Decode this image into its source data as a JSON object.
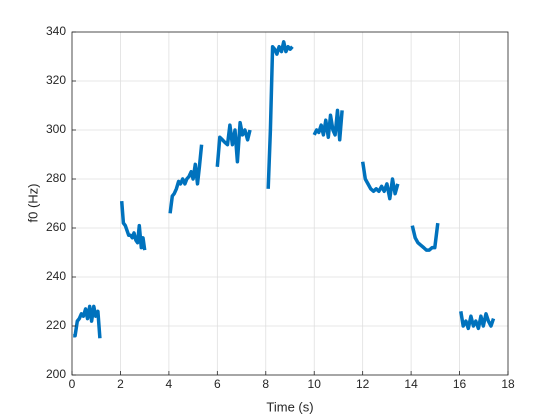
{
  "chart_data": {
    "type": "line",
    "xlabel": "Time (s)",
    "ylabel": "f0 (Hz)",
    "xlim": [
      0,
      18
    ],
    "xticks": [
      0,
      2,
      4,
      6,
      8,
      10,
      12,
      14,
      16,
      18
    ],
    "ylim": [
      200,
      340
    ],
    "yticks": [
      200,
      220,
      240,
      260,
      280,
      300,
      320,
      340
    ],
    "grid": true,
    "x": [
      0.05,
      0.13,
      0.22,
      0.3,
      0.39,
      0.47,
      0.56,
      0.64,
      0.73,
      0.81,
      0.9,
      0.98,
      1.07,
      1.15,
      null,
      2.05,
      2.12,
      2.2,
      2.27,
      2.34,
      2.42,
      2.49,
      2.56,
      2.64,
      2.71,
      2.78,
      2.86,
      2.93,
      3.0,
      null,
      4.05,
      4.14,
      4.22,
      4.31,
      4.4,
      4.48,
      4.57,
      4.66,
      4.74,
      4.83,
      4.92,
      5.0,
      5.09,
      5.18,
      5.26,
      5.35,
      null,
      6.0,
      6.1,
      6.21,
      6.31,
      6.42,
      6.52,
      6.62,
      6.73,
      6.83,
      6.94,
      7.04,
      7.14,
      7.25,
      7.35,
      null,
      8.1,
      8.19,
      8.28,
      8.37,
      8.46,
      8.55,
      8.65,
      8.74,
      8.83,
      8.92,
      9.01,
      9.1,
      null,
      10.0,
      10.1,
      10.19,
      10.29,
      10.38,
      10.48,
      10.58,
      10.67,
      10.77,
      10.86,
      10.96,
      11.05,
      11.15,
      null,
      12.0,
      12.11,
      12.22,
      12.33,
      12.45,
      12.56,
      12.67,
      12.78,
      12.89,
      13.0,
      13.12,
      13.23,
      13.34,
      13.45,
      null,
      14.05,
      14.17,
      14.28,
      14.4,
      14.52,
      14.63,
      14.75,
      14.87,
      14.98,
      15.1,
      null,
      16.05,
      16.15,
      16.26,
      16.36,
      16.47,
      16.57,
      16.67,
      16.78,
      16.88,
      16.98,
      17.09,
      17.19,
      17.3,
      17.4
    ],
    "series": [
      {
        "color": "#0072BD",
        "values": [
          216,
          216,
          222,
          223,
          225,
          224,
          227,
          223,
          228,
          222,
          228,
          224,
          226,
          215,
          null,
          271,
          262,
          261,
          259,
          257,
          257,
          256,
          258,
          255,
          254,
          261,
          252,
          256,
          251,
          null,
          266,
          273,
          274,
          276,
          279,
          278,
          280,
          278,
          280,
          281,
          283,
          280,
          286,
          278,
          285,
          294,
          null,
          285,
          297,
          296,
          295,
          294,
          302,
          294,
          300,
          287,
          303,
          298,
          300,
          296,
          300,
          null,
          276,
          300,
          334,
          333,
          331,
          334,
          332,
          336,
          332,
          334,
          333,
          334,
          null,
          298,
          300,
          299,
          302,
          298,
          304,
          297,
          306,
          300,
          298,
          308,
          296,
          308,
          null,
          287,
          280,
          278,
          276,
          275,
          276,
          275,
          277,
          275,
          278,
          272,
          280,
          274,
          278,
          null,
          261,
          256,
          254,
          253,
          252,
          251,
          251,
          252,
          252,
          262,
          null,
          226,
          220,
          222,
          219,
          224,
          220,
          222,
          219,
          224,
          220,
          225,
          222,
          220,
          223
        ]
      }
    ]
  }
}
